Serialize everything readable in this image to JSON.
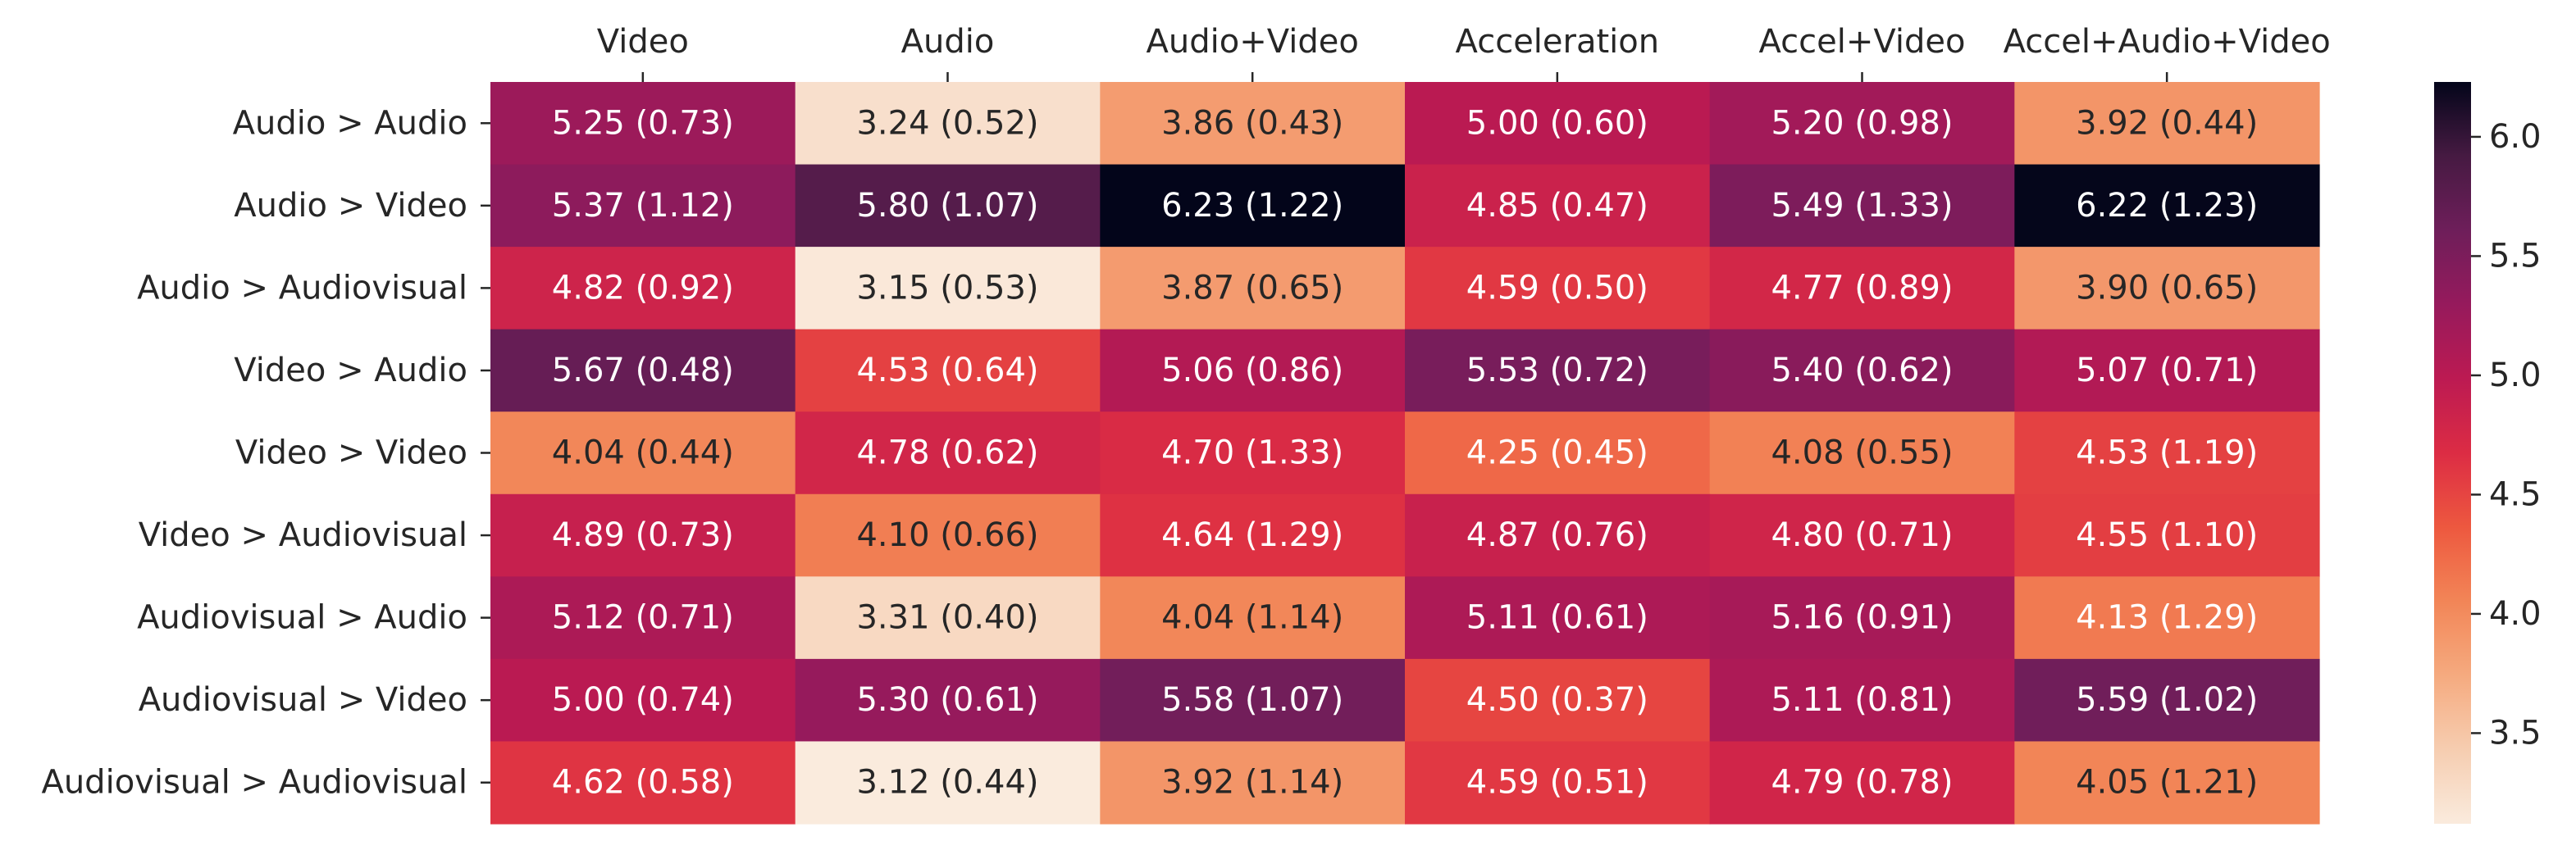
{
  "chart_data": {
    "type": "heatmap",
    "title": "",
    "xlabel": "",
    "ylabel": "",
    "columns": [
      "Video",
      "Audio",
      "Audio+Video",
      "Acceleration",
      "Accel+Video",
      "Accel+Audio+Video"
    ],
    "rows": [
      "Audio > Audio",
      "Audio > Video",
      "Audio > Audiovisual",
      "Video > Audio",
      "Video > Video",
      "Video > Audiovisual",
      "Audiovisual > Audio",
      "Audiovisual > Video",
      "Audiovisual > Audiovisual"
    ],
    "values": [
      [
        5.25,
        3.24,
        3.86,
        5.0,
        5.2,
        3.92
      ],
      [
        5.37,
        5.8,
        6.23,
        4.85,
        5.49,
        6.22
      ],
      [
        4.82,
        3.15,
        3.87,
        4.59,
        4.77,
        3.9
      ],
      [
        5.67,
        4.53,
        5.06,
        5.53,
        5.4,
        5.07
      ],
      [
        4.04,
        4.78,
        4.7,
        4.25,
        4.08,
        4.53
      ],
      [
        4.89,
        4.1,
        4.64,
        4.87,
        4.8,
        4.55
      ],
      [
        5.12,
        3.31,
        4.04,
        5.11,
        5.16,
        4.13
      ],
      [
        5.0,
        5.3,
        5.58,
        4.5,
        5.11,
        5.59
      ],
      [
        4.62,
        3.12,
        3.92,
        4.59,
        4.79,
        4.05
      ]
    ],
    "cell_labels": [
      [
        "5.25 (0.73)",
        "3.24 (0.52)",
        "3.86 (0.43)",
        "5.00 (0.60)",
        "5.20 (0.98)",
        "3.92 (0.44)"
      ],
      [
        "5.37 (1.12)",
        "5.80 (1.07)",
        "6.23 (1.22)",
        "4.85 (0.47)",
        "5.49 (1.33)",
        "6.22 (1.23)"
      ],
      [
        "4.82 (0.92)",
        "3.15 (0.53)",
        "3.87 (0.65)",
        "4.59 (0.50)",
        "4.77 (0.89)",
        "3.90 (0.65)"
      ],
      [
        "5.67 (0.48)",
        "4.53 (0.64)",
        "5.06 (0.86)",
        "5.53 (0.72)",
        "5.40 (0.62)",
        "5.07 (0.71)"
      ],
      [
        "4.04 (0.44)",
        "4.78 (0.62)",
        "4.70 (1.33)",
        "4.25 (0.45)",
        "4.08 (0.55)",
        "4.53 (1.19)"
      ],
      [
        "4.89 (0.73)",
        "4.10 (0.66)",
        "4.64 (1.29)",
        "4.87 (0.76)",
        "4.80 (0.71)",
        "4.55 (1.10)"
      ],
      [
        "5.12 (0.71)",
        "3.31 (0.40)",
        "4.04 (1.14)",
        "5.11 (0.61)",
        "5.16 (0.91)",
        "4.13 (1.29)"
      ],
      [
        "5.00 (0.74)",
        "5.30 (0.61)",
        "5.58 (1.07)",
        "4.50 (0.37)",
        "5.11 (0.81)",
        "5.59 (1.02)"
      ],
      [
        "4.62 (0.58)",
        "3.12 (0.44)",
        "3.92 (1.14)",
        "4.59 (0.51)",
        "4.79 (0.78)",
        "4.05 (1.21)"
      ]
    ],
    "colormap": "rocket_r",
    "colorbar": {
      "range": [
        3.12,
        6.23
      ],
      "ticks": [
        3.5,
        4.0,
        4.5,
        5.0,
        5.5,
        6.0
      ],
      "tick_labels": [
        "3.5",
        "4.0",
        "4.5",
        "5.0",
        "5.5",
        "6.0"
      ],
      "placement": "right"
    },
    "column_labels_position": "top",
    "grid": false
  }
}
